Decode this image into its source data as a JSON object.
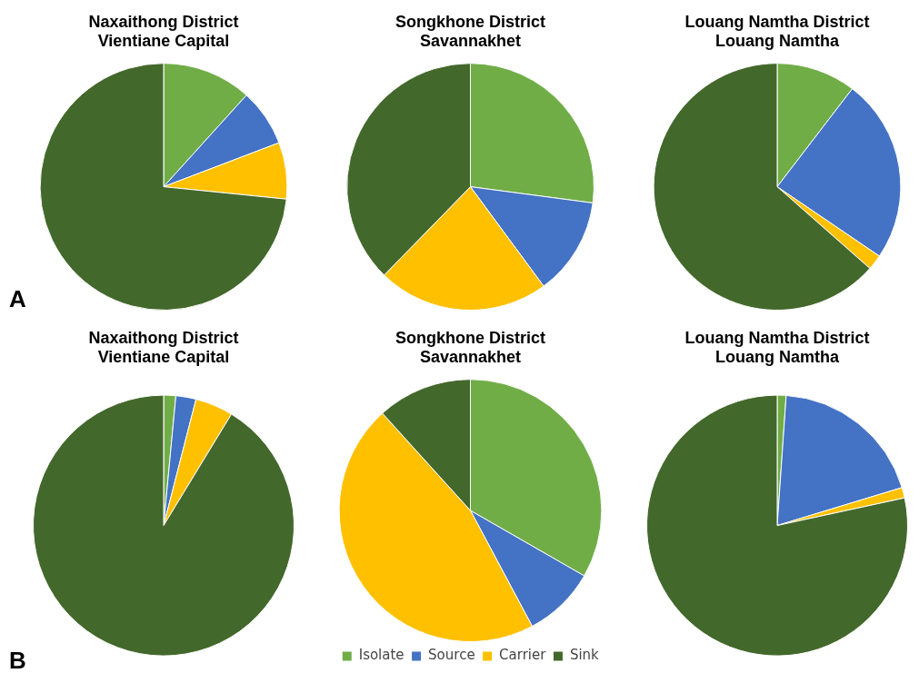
{
  "chart_data": [
    {
      "type": "pie",
      "title": "Naxaithong District\nVientiane Capital",
      "categories": [
        null,
        null,
        null,
        null
      ],
      "values": [
        11.7,
        7.5,
        7.4,
        73.4
      ],
      "colors": [
        "#70ad47",
        "#4472c4",
        "#ffc000",
        "#43682b"
      ],
      "annotations": [
        "A"
      ],
      "legend": false
    },
    {
      "type": "pie",
      "title": "Songkhone District\nSavannakhet",
      "categories": [
        null,
        null,
        null,
        null
      ],
      "values": [
        27.1,
        12.8,
        22.4,
        37.7
      ],
      "colors": [
        "#70ad47",
        "#4472c4",
        "#ffc000",
        "#43682b"
      ],
      "legend": false
    },
    {
      "type": "pie",
      "title": "Louang Namtha District\nLouang Namtha",
      "categories": [
        null,
        null,
        null,
        null
      ],
      "values": [
        10.4,
        24.1,
        2.0,
        63.5
      ],
      "colors": [
        "#70ad47",
        "#4472c4",
        "#ffc000",
        "#43682b"
      ],
      "legend": false
    },
    {
      "type": "pie",
      "title": "Naxaithong District\nVientiane Capital",
      "categories": [
        null,
        null,
        null,
        null
      ],
      "values": [
        1.5,
        2.5,
        4.7,
        91.3
      ],
      "colors": [
        "#70ad47",
        "#4472c4",
        "#ffc000",
        "#43682b"
      ],
      "annotations": [
        "B"
      ],
      "legend": false
    },
    {
      "type": "pie",
      "title": "Songkhone District\nSavannakhet",
      "categories": [
        "Isolate",
        "Source",
        "Carrier",
        "Sink"
      ],
      "values": [
        33.3,
        8.9,
        46.1,
        11.7
      ],
      "colors": [
        "#70ad47",
        "#4472c4",
        "#ffc000",
        "#43682b"
      ],
      "legend": "bottom"
    },
    {
      "type": "pie",
      "title": "Louang Namtha District\nLouang Namtha",
      "categories": [
        null,
        null,
        null,
        null
      ],
      "values": [
        1.1,
        19.2,
        1.3,
        78.4
      ],
      "colors": [
        "#70ad47",
        "#4472c4",
        "#ffc000",
        "#43682b"
      ],
      "legend": false
    }
  ]
}
